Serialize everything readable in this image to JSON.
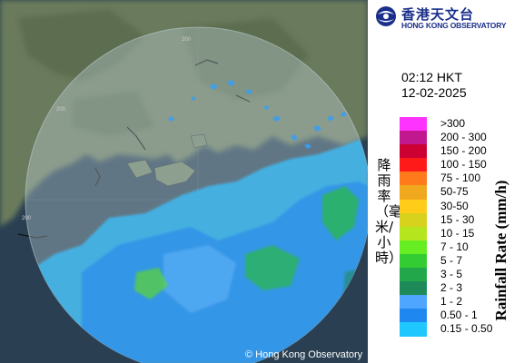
{
  "header": {
    "org_name_zh": "香港天文台",
    "org_name_en": "HONG KONG OBSERVATORY"
  },
  "timestamp": {
    "time": "02:12 HKT",
    "date": "12-02-2025"
  },
  "legend": {
    "title_zh": "降雨率（毫米/小時）",
    "title_en": "Rainfall Rate (mm/h)",
    "items": [
      {
        "label": ">300",
        "color": "#ff33ff"
      },
      {
        "label": "200 - 300",
        "color": "#c2188f"
      },
      {
        "label": "150 - 200",
        "color": "#cc0033"
      },
      {
        "label": "100 - 150",
        "color": "#ff1a1a"
      },
      {
        "label": "75 - 100",
        "color": "#ff7a1a"
      },
      {
        "label": "50-75",
        "color": "#f0a81e"
      },
      {
        "label": "30-50",
        "color": "#ffcc1a"
      },
      {
        "label": "15 - 30",
        "color": "#d8d21c"
      },
      {
        "label": "10 - 15",
        "color": "#b5e61d"
      },
      {
        "label": "7 - 10",
        "color": "#66ee22"
      },
      {
        "label": "5 - 7",
        "color": "#33cc33"
      },
      {
        "label": "3 - 5",
        "color": "#22a84a"
      },
      {
        "label": "2 - 3",
        "color": "#1e8a5a"
      },
      {
        "label": "1 - 2",
        "color": "#4fa6ff"
      },
      {
        "label": "0.50 - 1",
        "color": "#1e88f0"
      },
      {
        "label": "0.15 - 0.50",
        "color": "#1ec8ff"
      }
    ]
  },
  "map": {
    "copyright": "© Hong Kong Observatory",
    "range_ring_labels": [
      "200",
      "200",
      "200"
    ],
    "colors": {
      "land": "#6e7c5e",
      "sea": "#283f52",
      "coverage": "#9ab8c8"
    }
  }
}
